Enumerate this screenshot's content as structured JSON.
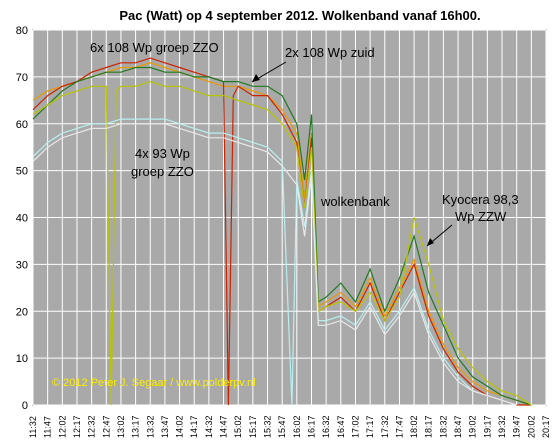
{
  "chart_data": {
    "type": "line",
    "title": "Pac (Watt) op 4 september 2012. Wolkenband vanaf 16h00.",
    "xlabel": "",
    "ylabel": "",
    "ylim": [
      0,
      80
    ],
    "yticks": [
      "0",
      "10",
      "20",
      "30",
      "40",
      "50",
      "60",
      "70",
      "80"
    ],
    "grid": true,
    "xticks": [
      "11:32",
      "11:47",
      "12:02",
      "12:17",
      "12:32",
      "12:47",
      "13:02",
      "13:17",
      "13:32",
      "13:47",
      "14:02",
      "14:17",
      "14:32",
      "14:47",
      "15:02",
      "15:17",
      "15:32",
      "15:47",
      "16:02",
      "16:17",
      "16:32",
      "16:47",
      "17:02",
      "17:17",
      "17:32",
      "17:47",
      "18:02",
      "18:17",
      "18:32",
      "18:47",
      "19:02",
      "19:17",
      "19:32",
      "19:47",
      "20:02",
      "20:17"
    ],
    "annotations": {
      "group_zzo_108": "6x 108  Wp groep ZZO",
      "group_zuid": "2x 108  Wp zuid",
      "group_93_line1": "4x 93 Wp",
      "group_93_line2": "groep ZZO",
      "wolkenbank": "wolkenbank",
      "kyocera_line1": "Kyocera 98,3",
      "kyocera_line2": "Wp ZZW",
      "copyright": "© 2012 Peter J. Segaar / www.polderpv.nl"
    },
    "series": [
      {
        "color": "#e89a00",
        "x": [
          "11:32",
          "11:47",
          "12:02",
          "12:17",
          "12:32",
          "12:47",
          "13:02",
          "13:17",
          "13:32",
          "13:47",
          "14:02",
          "14:17",
          "14:32",
          "14:47",
          "15:02",
          "15:17",
          "15:32",
          "15:47",
          "16:02",
          "16:10",
          "16:17",
          "16:24",
          "16:32",
          "16:47",
          "17:02",
          "17:17",
          "17:32",
          "17:47",
          "18:02",
          "18:17",
          "18:32",
          "18:47",
          "19:02",
          "19:17",
          "19:32",
          "19:47",
          "20:02"
        ],
        "values": [
          65,
          67,
          68,
          69,
          70,
          71,
          72,
          72,
          73,
          72,
          71,
          70,
          69,
          68,
          68,
          67,
          66,
          63,
          58,
          44,
          58,
          21,
          22,
          24,
          21,
          27,
          19,
          25,
          31,
          20,
          13,
          8,
          5,
          3,
          2,
          1,
          0
        ]
      },
      {
        "color": "#cc2200",
        "x": [
          "11:32",
          "11:47",
          "12:02",
          "12:17",
          "12:32",
          "12:47",
          "13:02",
          "13:17",
          "13:32",
          "13:47",
          "14:02",
          "14:17",
          "14:32",
          "14:47",
          "14:52",
          "14:57",
          "15:02",
          "15:17",
          "15:32",
          "15:47",
          "16:02",
          "16:10",
          "16:17",
          "16:24",
          "16:32",
          "16:47",
          "17:02",
          "17:17",
          "17:32",
          "17:47",
          "18:02",
          "18:17",
          "18:32",
          "18:47",
          "19:02",
          "19:17",
          "19:32",
          "19:47",
          "20:02"
        ],
        "values": [
          63,
          66,
          68,
          69,
          71,
          72,
          73,
          73,
          74,
          73,
          72,
          71,
          70,
          69,
          0,
          66,
          68,
          66,
          66,
          62,
          56,
          42,
          57,
          20,
          21,
          23,
          20,
          26,
          18,
          24,
          30,
          19,
          12,
          7,
          4,
          2,
          1,
          0,
          0
        ]
      },
      {
        "color": "#207a20",
        "x": [
          "11:32",
          "11:47",
          "12:02",
          "12:17",
          "12:32",
          "12:47",
          "13:02",
          "13:17",
          "13:32",
          "13:47",
          "14:02",
          "14:17",
          "14:32",
          "14:47",
          "15:02",
          "15:17",
          "15:32",
          "15:47",
          "16:02",
          "16:10",
          "16:17",
          "16:24",
          "16:32",
          "16:47",
          "17:02",
          "17:17",
          "17:32",
          "17:47",
          "18:02",
          "18:17",
          "18:32",
          "18:47",
          "19:02",
          "19:17",
          "19:32",
          "19:47",
          "20:02"
        ],
        "values": [
          61,
          64,
          67,
          69,
          70,
          71,
          71,
          72,
          72,
          71,
          71,
          70,
          70,
          69,
          69,
          68,
          68,
          66,
          60,
          48,
          62,
          22,
          23,
          26,
          22,
          29,
          20,
          27,
          36,
          24,
          17,
          10,
          6,
          4,
          2,
          1,
          0
        ]
      },
      {
        "color": "#b8c400",
        "x": [
          "11:32",
          "11:47",
          "12:02",
          "12:17",
          "12:32",
          "12:47",
          "12:52",
          "12:57",
          "13:02",
          "13:17",
          "13:32",
          "13:47",
          "14:02",
          "14:17",
          "14:32",
          "14:47",
          "15:02",
          "15:17",
          "15:32",
          "15:47",
          "16:02",
          "16:10",
          "16:17",
          "16:24",
          "16:32",
          "16:47",
          "17:02",
          "17:17",
          "17:32",
          "17:47",
          "18:02",
          "18:17",
          "18:32",
          "18:47",
          "19:02",
          "19:17",
          "19:32",
          "19:47",
          "20:02"
        ],
        "values": [
          62,
          64,
          66,
          67,
          68,
          68,
          0,
          67,
          68,
          68,
          69,
          68,
          68,
          67,
          66,
          66,
          65,
          64,
          63,
          60,
          55,
          42,
          55,
          20,
          21,
          22,
          20,
          24,
          18,
          23,
          40,
          30,
          18,
          12,
          8,
          5,
          3,
          2,
          0
        ]
      },
      {
        "color": "#b8f0f0",
        "x": [
          "11:32",
          "11:47",
          "12:02",
          "12:17",
          "12:32",
          "12:47",
          "13:02",
          "13:17",
          "13:32",
          "13:47",
          "14:02",
          "14:17",
          "14:32",
          "14:47",
          "15:02",
          "15:17",
          "15:32",
          "15:47",
          "15:57",
          "16:02",
          "16:10",
          "16:17",
          "16:24",
          "16:32",
          "16:47",
          "17:02",
          "17:17",
          "17:32",
          "17:47",
          "18:02",
          "18:17",
          "18:32",
          "18:47",
          "19:02",
          "19:17",
          "19:32",
          "19:47"
        ],
        "values": [
          53,
          56,
          58,
          59,
          60,
          60,
          61,
          61,
          61,
          61,
          60,
          59,
          58,
          58,
          57,
          56,
          55,
          52,
          0,
          48,
          38,
          50,
          18,
          18,
          19,
          17,
          22,
          16,
          20,
          25,
          16,
          10,
          6,
          3,
          2,
          1,
          0
        ]
      },
      {
        "color": "#e8e8e8",
        "x": [
          "11:32",
          "11:47",
          "12:02",
          "12:17",
          "12:32",
          "12:47",
          "13:02",
          "13:17",
          "13:32",
          "13:47",
          "14:02",
          "14:17",
          "14:32",
          "14:47",
          "15:02",
          "15:17",
          "15:32",
          "15:47",
          "16:02",
          "16:10",
          "16:17",
          "16:24",
          "16:32",
          "16:47",
          "17:02",
          "17:17",
          "17:32",
          "17:47",
          "18:02",
          "18:17",
          "18:32",
          "18:47",
          "19:02",
          "19:17",
          "19:32",
          "19:47"
        ],
        "values": [
          52,
          55,
          57,
          58,
          59,
          59,
          60,
          60,
          60,
          60,
          59,
          58,
          57,
          57,
          56,
          55,
          54,
          51,
          47,
          36,
          49,
          17,
          17,
          18,
          16,
          21,
          15,
          19,
          24,
          15,
          9,
          5,
          3,
          2,
          1,
          0
        ]
      }
    ]
  }
}
